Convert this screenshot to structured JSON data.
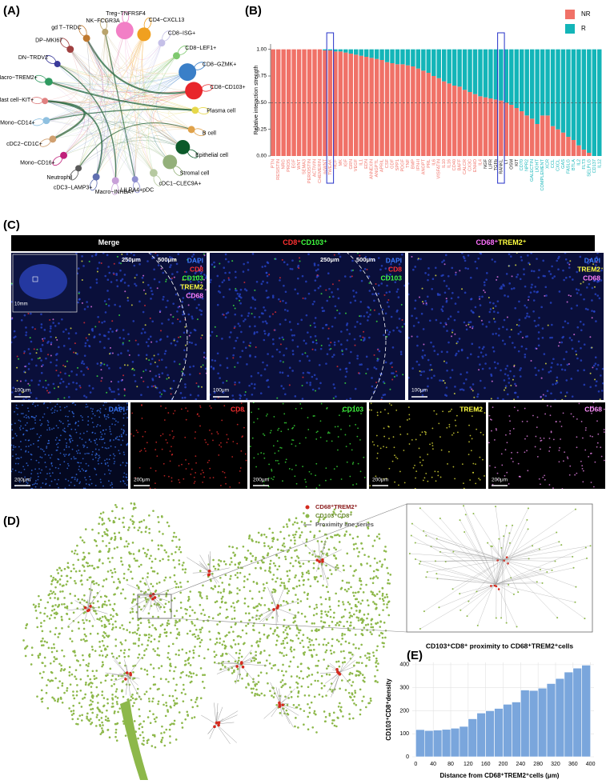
{
  "panel_labels": [
    "(A)",
    "(B)",
    "(C)",
    "(D)",
    "(E)"
  ],
  "chart_data": [
    {
      "type": "network",
      "nodes": [
        {
          "label": "NK−FCGR3A",
          "color": "#b9a36b",
          "size": 4
        },
        {
          "label": "Treg−TNFRSF4",
          "color": "#f27fc6",
          "size": 30
        },
        {
          "label": "CD4−CXCL13",
          "color": "#f0a020",
          "size": 18
        },
        {
          "label": "CD8−ISG+",
          "color": "#c5c0e8",
          "size": 5
        },
        {
          "label": "CD8−LEF1+",
          "color": "#7ec96e",
          "size": 5
        },
        {
          "label": "CD8−GZMK+",
          "color": "#3a7fc8",
          "size": 30
        },
        {
          "label": "CD8−CD103+",
          "color": "#e8262b",
          "size": 30
        },
        {
          "label": "Plasma cell",
          "color": "#e7d84a",
          "size": 5
        },
        {
          "label": "B cell",
          "color": "#e0a24a",
          "size": 5
        },
        {
          "label": "Epithelial cell",
          "color": "#0b5a2a",
          "size": 20
        },
        {
          "label": "Stromal cell",
          "color": "#93b07a",
          "size": 20
        },
        {
          "label": "cDC1−CLEC9A+",
          "color": "#b6c9a0",
          "size": 6
        },
        {
          "label": "LILRA4+pDC",
          "color": "#8f8fd0",
          "size": 4
        },
        {
          "label": "Macro−INHBA+",
          "color": "#c8a0d8",
          "size": 5
        },
        {
          "label": "cDC3−LAMP3+",
          "color": "#5f6fb0",
          "size": 5
        },
        {
          "label": "Neutrophil",
          "color": "#5a5a5a",
          "size": 4
        },
        {
          "label": "Mono−CD16+",
          "color": "#c0207a",
          "size": 5
        },
        {
          "label": "cDC2−CD1C+",
          "color": "#d0a070",
          "size": 5
        },
        {
          "label": "Mono−CD14+",
          "color": "#8fc0e0",
          "size": 5
        },
        {
          "label": "Mast cell−KIT+",
          "color": "#e08080",
          "size": 4
        },
        {
          "label": "Macro−TREM2+",
          "color": "#2f9a60",
          "size": 6
        },
        {
          "label": "DN−TRDV2",
          "color": "#3a3a9a",
          "size": 4
        },
        {
          "label": "DP−MKI67",
          "color": "#a04040",
          "size": 5
        },
        {
          "label": "gd T−TRDC",
          "color": "#c07a30",
          "size": 5
        }
      ]
    },
    {
      "type": "stacked_bar",
      "ylabel": "Relative interaction strength",
      "ylim": [
        0,
        1.05
      ],
      "yticks": [
        {
          "value": 0,
          "label": "0.00"
        },
        {
          "value": 0.25,
          "label": "0.25"
        },
        {
          "value": 0.5,
          "label": "0.50"
        },
        {
          "value": 0.75,
          "label": "0.75"
        },
        {
          "value": 1,
          "label": "1.00"
        }
      ],
      "hline": 0.5,
      "highlighted": [
        11,
        44
      ],
      "legend": "top-right",
      "categories": [
        "PTN",
        "RESISTIN",
        "NRG",
        "PROS",
        "EGF",
        "WNT",
        "SEMA3",
        "PERIOSTIN",
        "ACTIVIN",
        "CHEMERIN",
        "ncWNT",
        "TWEAK",
        "HGF",
        "MK",
        "IGF",
        "GRN",
        "VEGF",
        "IL1",
        "EDN",
        "ANNEXIN",
        "ANGPTL",
        "APRIL",
        "CSF",
        "GDF",
        "SPP1",
        "PDGF",
        "TNF",
        "BMP",
        "IFN-II",
        "ANGPT",
        "PRL",
        "IL6",
        "VISFATIN",
        "IL10",
        "IL16",
        "CD40",
        "BAFF",
        "CALCR",
        "CX3C",
        "ENHO",
        "IL4",
        "NGF",
        "LIFR",
        "TGFb",
        "RANKL",
        "LT",
        "OSM",
        "KIT",
        "CD70",
        "NPR2",
        "GALECTIN",
        "LIGHT",
        "COMPLEMENT",
        "XCR",
        "CCL",
        "CXCL",
        "GAS",
        "FASLG",
        "BTLA",
        "IL2",
        "FLT3",
        "SELPLG",
        "CD137",
        "IL12"
      ],
      "series": [
        {
          "name": "NR",
          "color": "#f07167",
          "values": [
            1,
            1,
            1,
            1,
            1,
            1,
            1,
            1,
            1,
            1,
            0.99,
            0.99,
            0.98,
            0.98,
            0.97,
            0.96,
            0.95,
            0.94,
            0.93,
            0.92,
            0.91,
            0.9,
            0.88,
            0.87,
            0.86,
            0.86,
            0.85,
            0.84,
            0.82,
            0.8,
            0.78,
            0.75,
            0.73,
            0.7,
            0.68,
            0.66,
            0.65,
            0.62,
            0.6,
            0.58,
            0.56,
            0.55,
            0.54,
            0.53,
            0.52,
            0.5,
            0.48,
            0.45,
            0.42,
            0.38,
            0.35,
            0.3,
            0.38,
            0.38,
            0.28,
            0.25,
            0.22,
            0.18,
            0.15,
            0.1,
            0.06,
            0.03,
            0,
            0
          ]
        },
        {
          "name": "R",
          "color": "#13b5b8",
          "values": [
            0,
            0,
            0,
            0,
            0,
            0,
            0,
            0,
            0,
            0,
            0.01,
            0.01,
            0.02,
            0.02,
            0.03,
            0.04,
            0.05,
            0.06,
            0.07,
            0.08,
            0.09,
            0.1,
            0.12,
            0.13,
            0.14,
            0.14,
            0.15,
            0.16,
            0.18,
            0.2,
            0.22,
            0.25,
            0.27,
            0.3,
            0.32,
            0.34,
            0.35,
            0.38,
            0.4,
            0.42,
            0.44,
            0.45,
            0.46,
            0.47,
            0.48,
            0.5,
            0.52,
            0.55,
            0.58,
            0.62,
            0.65,
            0.7,
            0.62,
            0.62,
            0.72,
            0.75,
            0.78,
            0.82,
            0.85,
            0.9,
            0.94,
            0.97,
            1,
            1
          ]
        }
      ]
    },
    {
      "type": "spatial",
      "series": [
        {
          "name": "CD68⁺TREM2⁺",
          "color": "#d42a1e"
        },
        {
          "name": "CD103⁺CD8⁺",
          "color": "#8db84a"
        },
        {
          "name": "Proximity line series",
          "color": "#9a9a9a"
        }
      ]
    },
    {
      "type": "histogram",
      "title": "CD103⁺CD8⁺ proximity to CD68⁺TREM2⁺cells",
      "xlabel": "Distance from CD68⁺TREM2⁺cells (μm)",
      "ylabel": "CD103⁺CD8⁺density",
      "color": "#7aa6dc",
      "grid": true,
      "xlim": [
        -8,
        408
      ],
      "ylim": [
        0,
        410
      ],
      "xticks": [
        0,
        40,
        80,
        120,
        160,
        200,
        240,
        280,
        320,
        360,
        400
      ],
      "yticks": [
        0,
        100,
        200,
        300,
        400
      ],
      "bins": [
        0,
        20,
        40,
        60,
        80,
        100,
        120,
        140,
        160,
        180,
        200,
        220,
        240,
        260,
        280,
        300,
        320,
        340,
        360,
        380,
        400
      ],
      "values": [
        118,
        114,
        116,
        119,
        124,
        132,
        165,
        190,
        200,
        210,
        228,
        238,
        290,
        288,
        298,
        318,
        340,
        368,
        385,
        398
      ]
    }
  ],
  "images": {
    "header": [
      [
        {
          "text": "Merge",
          "color": "#ffffff"
        }
      ],
      [
        {
          "text": "CD8⁺",
          "color": "#ff3030"
        },
        {
          "text": "CD103⁺",
          "color": "#40ff40"
        }
      ],
      [
        {
          "text": "CD68⁺",
          "color": "#ff70ff"
        },
        {
          "text": "TREM2⁺",
          "color": "#ffff40"
        }
      ]
    ],
    "top": [
      {
        "channels": [
          {
            "text": "DAPI",
            "color": "#3a7aff"
          },
          {
            "text": "CD8",
            "color": "#ff3030"
          },
          {
            "text": "CD103",
            "color": "#40ff40"
          },
          {
            "text": "TREM2",
            "color": "#ffff40"
          },
          {
            "text": "CD68",
            "color": "#ff80ff"
          }
        ],
        "rings": [
          "250μm",
          "500μm"
        ],
        "scale": "100μm",
        "inset_scale": "10mm"
      },
      {
        "channels": [
          {
            "text": "DAPI",
            "color": "#3a7aff"
          },
          {
            "text": "CD8",
            "color": "#ff3030"
          },
          {
            "text": "CD103",
            "color": "#40ff40"
          }
        ],
        "rings": [
          "250μm",
          "500μm"
        ],
        "scale": "100μm"
      },
      {
        "channels": [
          {
            "text": "DAPI",
            "color": "#3a7aff"
          },
          {
            "text": "TREM2",
            "color": "#ffff40"
          },
          {
            "text": "CD68",
            "color": "#ff80ff"
          }
        ],
        "scale": "100μm"
      }
    ],
    "bottom": [
      {
        "channel": {
          "text": "DAPI",
          "color": "#3a7aff"
        },
        "scale": "200μm"
      },
      {
        "channel": {
          "text": "CD8",
          "color": "#ff3030"
        },
        "scale": "200μm"
      },
      {
        "channel": {
          "text": "CD103",
          "color": "#40ff40"
        },
        "scale": "200μm"
      },
      {
        "channel": {
          "text": "TREM2",
          "color": "#ffff40"
        },
        "scale": "200μm"
      },
      {
        "channel": {
          "text": "CD68",
          "color": "#ff90ff"
        },
        "scale": "200μm"
      }
    ]
  }
}
